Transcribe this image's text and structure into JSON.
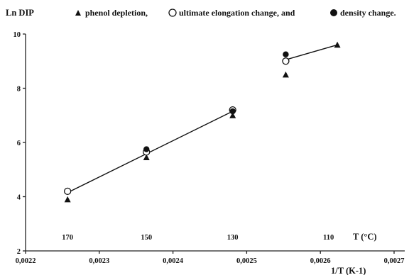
{
  "chart_data": {
    "type": "scatter",
    "title": "",
    "ylabel": "Ln DIP",
    "xlabel": "1/T  (K-1)",
    "top_axis_label": "T (°C)",
    "xlim": [
      0.0022,
      0.0027
    ],
    "ylim": [
      2,
      10
    ],
    "x_ticks": [
      "0,0022",
      "0,0023",
      "0,0024",
      "0,0025",
      "0,0026",
      "0,0027"
    ],
    "y_ticks": [
      "2",
      "4",
      "6",
      "8",
      "10"
    ],
    "top_ticks": [
      {
        "label": "170",
        "x": 0.002257
      },
      {
        "label": "150",
        "x": 0.002364
      },
      {
        "label": "130",
        "x": 0.002481
      },
      {
        "label": "110",
        "x": 0.002611
      }
    ],
    "legend": {
      "before_first": "phenol depletion,",
      "between": "ultimate elongation change, and",
      "after_last": "density change."
    },
    "series": [
      {
        "name": "phenol depletion",
        "marker": "triangle",
        "points": [
          [
            0.002257,
            3.9
          ],
          [
            0.002364,
            5.45
          ],
          [
            0.002481,
            7.0
          ],
          [
            0.002553,
            8.5
          ],
          [
            0.002623,
            9.6
          ]
        ]
      },
      {
        "name": "ultimate elongation change",
        "marker": "open-circle",
        "points": [
          [
            0.002257,
            4.2
          ],
          [
            0.002364,
            5.65
          ],
          [
            0.002481,
            7.2
          ],
          [
            0.002553,
            9.0
          ]
        ]
      },
      {
        "name": "density change",
        "marker": "filled-circle",
        "points": [
          [
            0.002364,
            5.75
          ],
          [
            0.002481,
            7.15
          ],
          [
            0.002553,
            9.25
          ]
        ]
      }
    ],
    "fit_lines": [
      {
        "from": [
          0.002257,
          4.15
        ],
        "to": [
          0.002481,
          7.15
        ]
      },
      {
        "from": [
          0.002553,
          9.05
        ],
        "to": [
          0.002623,
          9.6
        ]
      }
    ],
    "colors": {
      "ink": "#111111",
      "background": "#ffffff"
    }
  }
}
